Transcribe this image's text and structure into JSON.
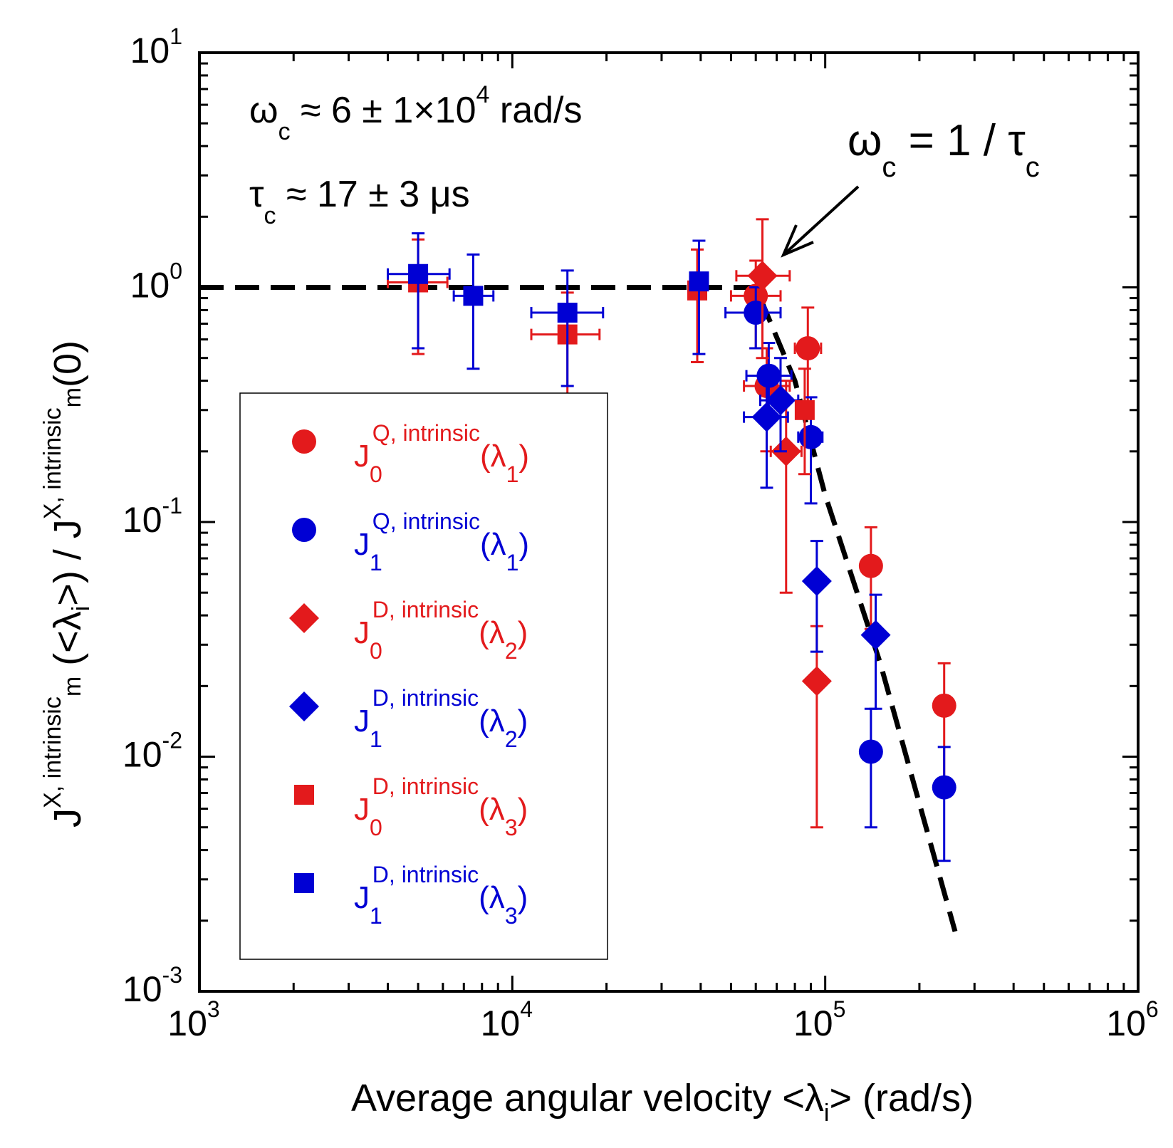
{
  "chart_data": {
    "type": "scatter",
    "x_scale": "log",
    "y_scale": "log",
    "xlim": [
      1000,
      1000000
    ],
    "ylim": [
      0.001,
      10
    ],
    "x_ticks": [
      {
        "value": 1000,
        "base": "10",
        "exp": "3"
      },
      {
        "value": 10000,
        "base": "10",
        "exp": "4"
      },
      {
        "value": 100000,
        "base": "10",
        "exp": "5"
      },
      {
        "value": 1000000,
        "base": "10",
        "exp": "6"
      }
    ],
    "y_ticks": [
      {
        "value": 0.001,
        "base": "10",
        "exp": "-3"
      },
      {
        "value": 0.01,
        "base": "10",
        "exp": "-2"
      },
      {
        "value": 0.1,
        "base": "10",
        "exp": "-1"
      },
      {
        "value": 1,
        "base": "10",
        "exp": "0"
      },
      {
        "value": 10,
        "base": "10",
        "exp": "1"
      }
    ],
    "xlabel": {
      "main": "Average angular velocity  <λ",
      "sub": "i",
      "tail": ">   (rad/s)"
    },
    "ylabel": {
      "p1": "J",
      "p1_sup": "X, intrinsic",
      "p1_sub": "m",
      "p2": " (<λ",
      "p2_sub": "i",
      "p3": ">)  /  J",
      "p3_sup": "X, intrinsic",
      "p3_sub": "m",
      "p4": "(0)"
    },
    "annotations": {
      "omega_line": {
        "sym": "ω",
        "sub": "c",
        "a": " ≈ 6 ± 1×10",
        "sup": "4",
        "b": "  rad/s"
      },
      "tau_line": {
        "sym": "τ",
        "sub": "c",
        "a": " ≈ 17 ± 3 μs"
      },
      "crossover": {
        "sym1": "ω",
        "sub1": "c",
        "mid": " = 1 / ",
        "sym2": "τ",
        "sub2": "c"
      }
    },
    "model_curve": {
      "name": "model",
      "style": "dashed",
      "color": "#000000",
      "points": [
        [
          1000,
          1.0
        ],
        [
          60000,
          1.0
        ],
        [
          80000,
          0.4
        ],
        [
          100000,
          0.13
        ],
        [
          150000,
          0.025
        ],
        [
          260000,
          0.0018
        ]
      ]
    },
    "series": [
      {
        "id": "j0q",
        "color": "#e31a1c",
        "marker": "circle",
        "label": {
          "base": "J",
          "sub": "0",
          "sup": "Q, intrinsic",
          "lambda": "(λ",
          "lsub": "1",
          "close": ")"
        },
        "points": [
          {
            "x": 60000,
            "y": 0.92,
            "xerr": [
              50000,
              72000
            ],
            "yerr": [
              0.55,
              1.3
            ]
          },
          {
            "x": 65000,
            "y": 0.38,
            "xerr": [
              55000,
              77000
            ],
            "yerr": [
              0.2,
              0.55
            ]
          },
          {
            "x": 88000,
            "y": 0.55,
            "xerr": [
              80000,
              97000
            ],
            "yerr": [
              0.3,
              0.82
            ]
          },
          {
            "x": 140000,
            "y": 0.065,
            "xerr": [
              133000,
              147000
            ],
            "yerr": [
              0.035,
              0.095
            ]
          },
          {
            "x": 240000,
            "y": 0.0165,
            "xerr": [
              235000,
              245000
            ],
            "yerr": [
              0.008,
              0.025
            ]
          }
        ]
      },
      {
        "id": "j1q",
        "color": "#0000d4",
        "marker": "circle",
        "label": {
          "base": "J",
          "sub": "1",
          "sup": "Q, intrinsic",
          "lambda": "(λ",
          "lsub": "1",
          "close": ")"
        },
        "points": [
          {
            "x": 60000,
            "y": 0.78,
            "xerr": [
              48000,
              72000
            ],
            "yerr": [
              0.55,
              1.0
            ]
          },
          {
            "x": 66000,
            "y": 0.42,
            "xerr": [
              56000,
              78000
            ],
            "yerr": [
              0.28,
              0.58
            ]
          },
          {
            "x": 90000,
            "y": 0.23,
            "xerr": [
              82000,
              98000
            ],
            "yerr": [
              0.12,
              0.34
            ]
          },
          {
            "x": 140000,
            "y": 0.0105,
            "xerr": [
              134000,
              146000
            ],
            "yerr": [
              0.005,
              0.016
            ]
          },
          {
            "x": 240000,
            "y": 0.0074,
            "xerr": [
              235000,
              245000
            ],
            "yerr": [
              0.0036,
              0.011
            ]
          }
        ]
      },
      {
        "id": "j0d",
        "color": "#e31a1c",
        "marker": "diamond",
        "label": {
          "base": "J",
          "sub": "0",
          "sup": "D, intrinsic",
          "lambda": "(λ",
          "lsub": "2",
          "close": ")"
        },
        "points": [
          {
            "x": 63000,
            "y": 1.12,
            "xerr": [
              52000,
              77000
            ],
            "yerr": [
              0.5,
              1.95
            ]
          },
          {
            "x": 75000,
            "y": 0.2,
            "xerr": [
              67000,
              84000
            ],
            "yerr": [
              0.05,
              0.4
            ]
          },
          {
            "x": 94000,
            "y": 0.021,
            "xerr": [
              89000,
              100000
            ],
            "yerr": [
              0.005,
              0.036
            ]
          }
        ]
      },
      {
        "id": "j1d",
        "color": "#0000d4",
        "marker": "diamond",
        "label": {
          "base": "J",
          "sub": "1",
          "sup": "D, intrinsic",
          "lambda": "(λ",
          "lsub": "2",
          "close": ")"
        },
        "points": [
          {
            "x": 65000,
            "y": 0.28,
            "xerr": [
              55000,
              76000
            ],
            "yerr": [
              0.14,
              0.42
            ]
          },
          {
            "x": 72000,
            "y": 0.33,
            "xerr": [
              62000,
              82000
            ],
            "yerr": [
              0.2,
              0.5
            ]
          },
          {
            "x": 94000,
            "y": 0.056,
            "xerr": [
              89000,
              100000
            ],
            "yerr": [
              0.028,
              0.083
            ]
          },
          {
            "x": 145000,
            "y": 0.033,
            "xerr": [
              138000,
              152000
            ],
            "yerr": [
              0.016,
              0.049
            ]
          }
        ]
      },
      {
        "id": "j0d3",
        "color": "#e31a1c",
        "marker": "square",
        "label": {
          "base": "J",
          "sub": "0",
          "sup": "D, intrinsic",
          "lambda": "(λ",
          "lsub": "3",
          "close": ")"
        },
        "points": [
          {
            "x": 5000,
            "y": 1.05,
            "xerr": [
              4000,
              6200
            ],
            "yerr": [
              0.52,
              1.6
            ]
          },
          {
            "x": 15000,
            "y": 0.63,
            "xerr": [
              11500,
              19000
            ],
            "yerr": [
              0.32,
              0.95
            ]
          },
          {
            "x": 39000,
            "y": 0.97,
            "xerr": [
              37000,
              41000
            ],
            "yerr": [
              0.48,
              1.45
            ]
          },
          {
            "x": 86000,
            "y": 0.3,
            "xerr": [
              81000,
              91000
            ],
            "yerr": [
              0.16,
              0.45
            ]
          }
        ]
      },
      {
        "id": "j1d3",
        "color": "#0000d4",
        "marker": "square",
        "label": {
          "base": "J",
          "sub": "1",
          "sup": "D, intrinsic",
          "lambda": "(λ",
          "lsub": "3",
          "close": ")"
        },
        "points": [
          {
            "x": 5000,
            "y": 1.14,
            "xerr": [
              4000,
              6300
            ],
            "yerr": [
              0.55,
              1.7
            ]
          },
          {
            "x": 7500,
            "y": 0.92,
            "xerr": [
              6500,
              8700
            ],
            "yerr": [
              0.45,
              1.38
            ]
          },
          {
            "x": 15000,
            "y": 0.78,
            "xerr": [
              11500,
              19500
            ],
            "yerr": [
              0.38,
              1.18
            ]
          },
          {
            "x": 39500,
            "y": 1.06,
            "xerr": [
              37000,
              42000
            ],
            "yerr": [
              0.52,
              1.58
            ]
          }
        ]
      }
    ]
  }
}
